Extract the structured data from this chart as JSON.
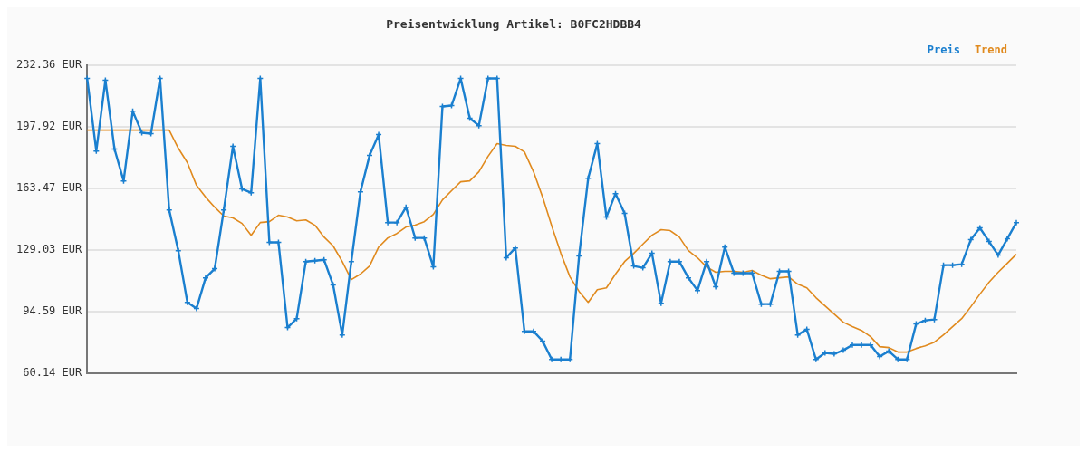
{
  "chart_data": {
    "type": "line",
    "title": "Preisentwicklung Artikel: B0FC2HDBB4",
    "categories": [
      null,
      null,
      null,
      null,
      null,
      null,
      null,
      null,
      null,
      null,
      null,
      null,
      null,
      null,
      null,
      null,
      null,
      null,
      null,
      null,
      null,
      null,
      null,
      null,
      null,
      null,
      null,
      null,
      null,
      null,
      null,
      null,
      null,
      null,
      null,
      null,
      null,
      null,
      null,
      null,
      null,
      null,
      null,
      null,
      null,
      null,
      null,
      null,
      null,
      null,
      null,
      null,
      null,
      null,
      null,
      null,
      null,
      null,
      null,
      null,
      null,
      null,
      null,
      null,
      null,
      null,
      null,
      null,
      null,
      null,
      null,
      null,
      null,
      null,
      null,
      null,
      null,
      null,
      null,
      null,
      null,
      null,
      null,
      null,
      null,
      null,
      null,
      null,
      null,
      null,
      null,
      null,
      null,
      null,
      null,
      null,
      null,
      null,
      null,
      null,
      null,
      null,
      null
    ],
    "series": [
      {
        "name": "Preis",
        "color": "#1a7fcf",
        "marker": "cross",
        "values": [
          224.8,
          184.2,
          223.8,
          185.3,
          167.5,
          206.5,
          194.4,
          193.9,
          224.8,
          151.3,
          128.5,
          99.6,
          96.1,
          113.3,
          118.4,
          151.3,
          186.8,
          163.0,
          160.9,
          224.8,
          133.1,
          133.1,
          85.5,
          90.5,
          122.4,
          122.9,
          123.4,
          109.3,
          81.4,
          122.4,
          161.4,
          181.7,
          193.4,
          144.2,
          144.2,
          152.8,
          135.6,
          135.6,
          119.4,
          209.1,
          209.6,
          224.8,
          202.5,
          198.4,
          224.8,
          224.8,
          124.5,
          130.0,
          83.4,
          83.4,
          77.9,
          67.7,
          67.7,
          67.7,
          125.5,
          169.0,
          188.3,
          147.3,
          160.4,
          149.3,
          119.9,
          118.9,
          127.0,
          99.1,
          122.4,
          122.4,
          113.3,
          106.2,
          122.4,
          108.3,
          130.5,
          115.9,
          115.9,
          115.9,
          98.6,
          98.6,
          116.9,
          116.9,
          81.4,
          84.5,
          67.7,
          71.3,
          70.8,
          72.8,
          75.8,
          75.8,
          75.8,
          69.3,
          72.3,
          67.7,
          67.7,
          87.5,
          89.5,
          90.0,
          120.4,
          120.4,
          120.9,
          134.6,
          141.2,
          133.6,
          126.0,
          135.1,
          144.2
        ]
      },
      {
        "name": "Trend",
        "color": "#e08a1e",
        "marker": "none",
        "values": [
          195.9,
          195.9,
          195.9,
          195.9,
          195.9,
          195.9,
          195.9,
          195.9,
          195.9,
          195.9,
          185.8,
          177.7,
          165.0,
          158.4,
          152.8,
          147.8,
          146.8,
          143.7,
          137.1,
          144.2,
          144.7,
          148.3,
          147.3,
          145.2,
          145.7,
          142.7,
          136.1,
          131.1,
          122.4,
          112.3,
          115.4,
          119.9,
          130.5,
          135.6,
          138.1,
          141.7,
          142.7,
          144.7,
          148.8,
          156.9,
          162.0,
          167.0,
          167.5,
          172.6,
          181.2,
          188.3,
          187.3,
          186.8,
          183.7,
          172.6,
          158.4,
          142.2,
          127.0,
          113.8,
          105.7,
          99.6,
          106.7,
          107.7,
          115.4,
          122.4,
          127.0,
          132.1,
          137.1,
          140.2,
          139.7,
          136.1,
          128.5,
          124.5,
          119.4,
          116.4,
          116.9,
          116.9,
          116.4,
          117.4,
          114.8,
          112.8,
          113.3,
          113.8,
          109.8,
          107.7,
          102.2,
          97.6,
          93.1,
          88.5,
          86.0,
          83.9,
          80.4,
          74.8,
          74.3,
          71.8,
          71.8,
          73.8,
          75.3,
          77.3,
          81.4,
          86.0,
          90.5,
          97.1,
          104.2,
          110.8,
          116.4,
          121.4,
          126.5
        ]
      }
    ],
    "ylim": [
      60.14,
      232.36
    ],
    "yticks": [
      {
        "value": 60.14,
        "label": "60.14 EUR"
      },
      {
        "value": 94.59,
        "label": "94.59 EUR"
      },
      {
        "value": 129.03,
        "label": "129.03 EUR"
      },
      {
        "value": 163.47,
        "label": "163.47 EUR"
      },
      {
        "value": 197.92,
        "label": "197.92 EUR"
      },
      {
        "value": 232.36,
        "label": "232.36 EUR"
      }
    ],
    "grid": "y",
    "legend": "top right",
    "line_style": "solid"
  }
}
